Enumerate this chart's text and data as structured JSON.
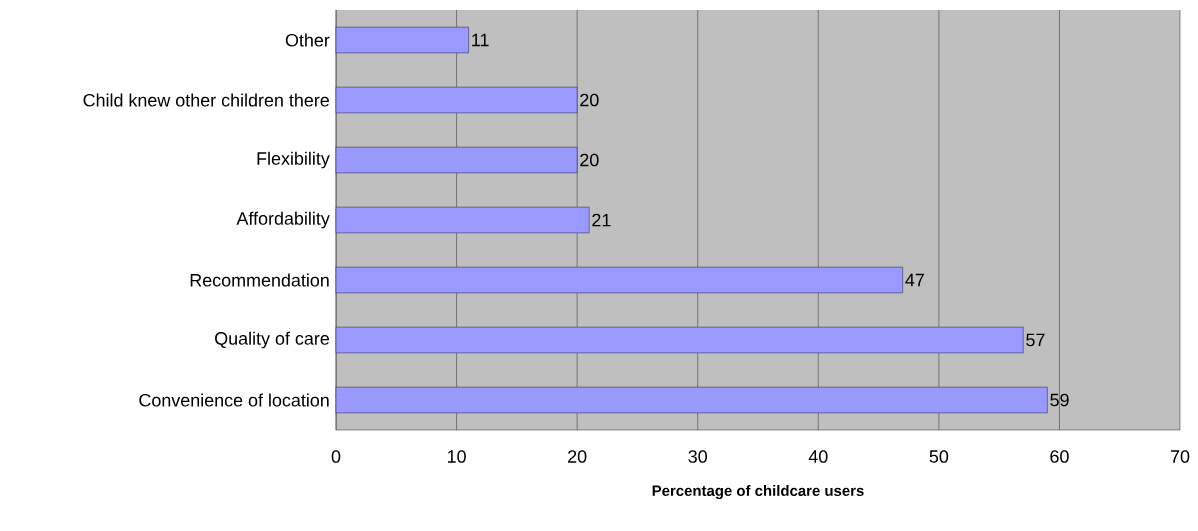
{
  "chart_data": {
    "type": "bar",
    "orientation": "horizontal",
    "xlabel": "Percentage of childcare users",
    "categories": [
      "Other",
      "Child knew other children there",
      "Flexibility",
      "Affordability",
      "Recommendation",
      "Quality of care",
      "Convenience of location"
    ],
    "values": [
      11,
      20,
      20,
      21,
      47,
      57,
      59
    ],
    "color": "#9999ff",
    "xlim": [
      0,
      70
    ],
    "xticks": [
      0,
      10,
      20,
      30,
      40,
      50,
      60,
      70
    ],
    "grid": "x",
    "data_labels": true
  }
}
